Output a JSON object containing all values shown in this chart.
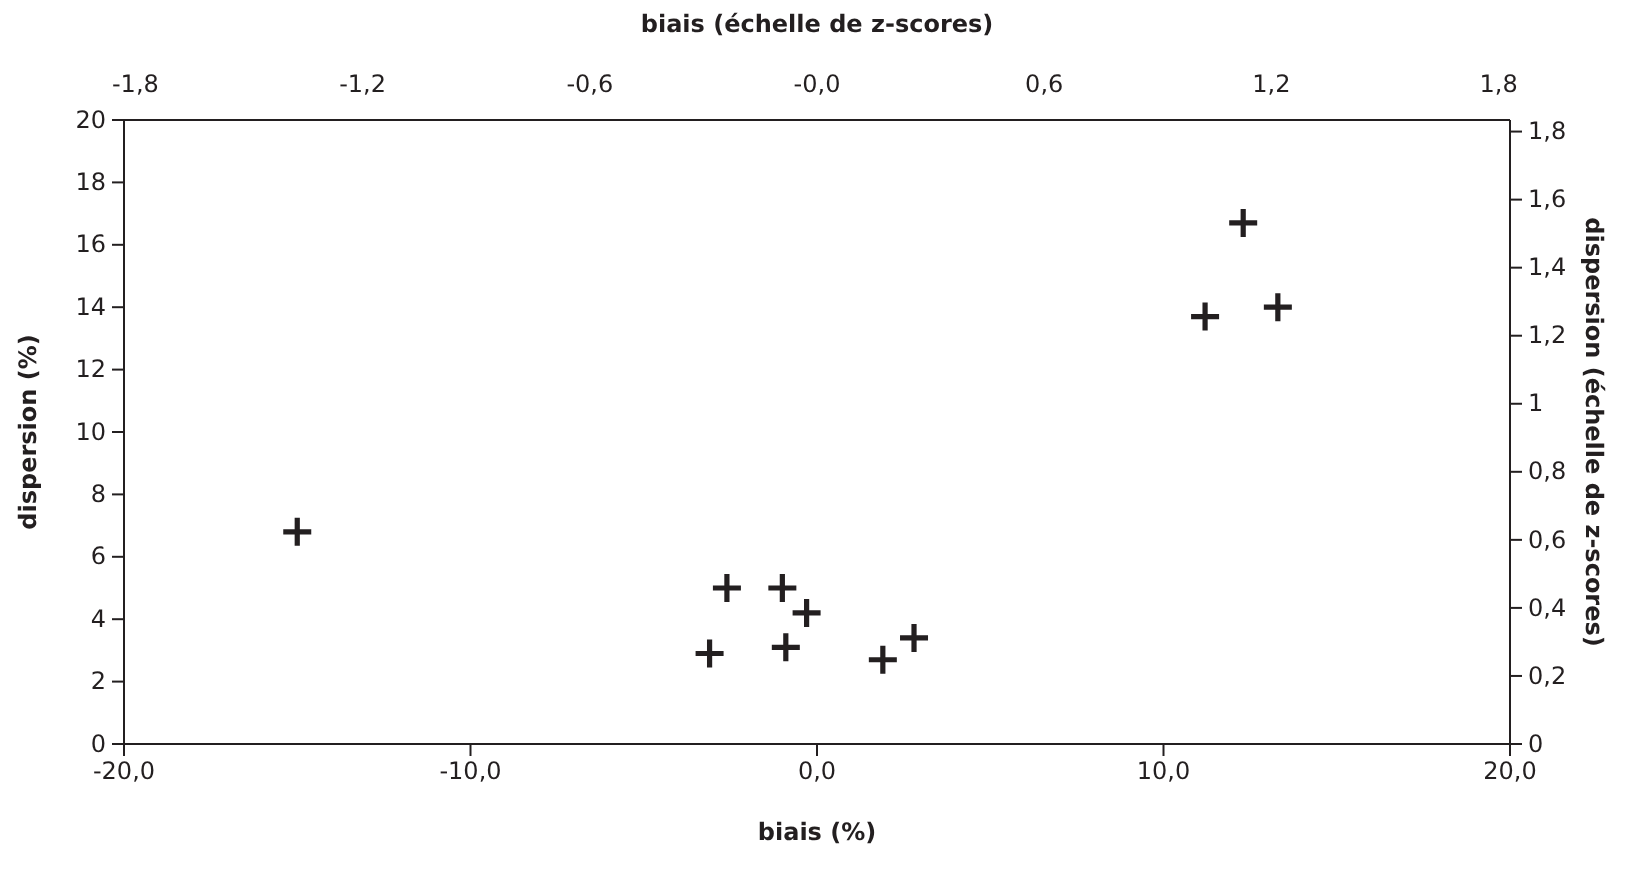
{
  "chart_data": {
    "type": "scatter",
    "xlabel": "biais (%)",
    "ylabel": "dispersion (%)",
    "x2label": "biais (échelle de z-scores)",
    "y2label": "dispersion (échelle de z-scores)",
    "marker": "cross",
    "grid": false,
    "series": [
      {
        "color": "#231f20",
        "x": [
          -15.0,
          -2.6,
          -1.0,
          -0.3,
          -3.1,
          -0.9,
          1.9,
          2.8,
          12.3,
          11.2,
          13.3
        ],
        "values": [
          6.8,
          5.0,
          5.0,
          4.2,
          2.9,
          3.1,
          2.7,
          3.4,
          16.7,
          13.7,
          14.0
        ]
      }
    ],
    "xlim": [
      -20,
      20
    ],
    "xticks": [
      {
        "value": -20,
        "label": "-20,0"
      },
      {
        "value": -10,
        "label": "-10,0"
      },
      {
        "value": 0,
        "label": "0,0"
      },
      {
        "value": 10,
        "label": "10,0"
      },
      {
        "value": 20,
        "label": "20,0"
      }
    ],
    "ylim": [
      0,
      20
    ],
    "yticks": [
      0,
      2,
      4,
      6,
      8,
      10,
      12,
      14,
      16,
      18,
      20
    ],
    "x2lim": [
      -1.83,
      1.83
    ],
    "x2ticks": [
      {
        "value": -1.8,
        "label": "-1,8"
      },
      {
        "value": -1.2,
        "label": "-1,2"
      },
      {
        "value": -0.6,
        "label": "-0,6"
      },
      {
        "value": 0,
        "label": "-0,0"
      },
      {
        "value": 0.6,
        "label": "0,6"
      },
      {
        "value": 1.2,
        "label": "1,2"
      },
      {
        "value": 1.8,
        "label": "1,8"
      }
    ],
    "y2lim": [
      0,
      1.834
    ],
    "y2ticks": [
      0,
      {
        "value": 0.2,
        "label": "0,2"
      },
      {
        "value": 0.4,
        "label": "0,4"
      },
      {
        "value": 0.6,
        "label": "0,6"
      },
      {
        "value": 0.8,
        "label": "0,8"
      },
      1,
      {
        "value": 1.2,
        "label": "1,2"
      },
      {
        "value": 1.4,
        "label": "1,4"
      },
      {
        "value": 1.6,
        "label": "1,6"
      },
      {
        "value": 1.8,
        "label": "1,8"
      }
    ]
  }
}
